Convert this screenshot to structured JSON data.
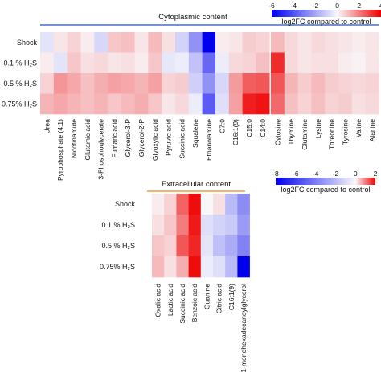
{
  "colors": {
    "negative": "#0000ee",
    "zero": "#f8f8fb",
    "positive": "#ee0000",
    "cyto_rule": "#4a6fc4",
    "extra_rule": "#f0a030"
  },
  "chart_data": [
    {
      "type": "heatmap",
      "title": "Cytoplasmic content",
      "colorbar": {
        "label": "log2FC compared to control",
        "ticks": [
          "-6",
          "-4",
          "-2",
          "0",
          "2",
          "4"
        ],
        "range": [
          -6,
          4
        ]
      },
      "rows": [
        "Shock",
        "0.1 % H₂S",
        "0.5 % H₂S",
        "0.75% H₂S"
      ],
      "groups": [
        {
          "columns": [
            "Urea",
            "Pyrophosphate (4:1)",
            "Nicotinamide",
            "Glutamic acid",
            "3-Phosphoglycerate",
            "Fumaric acid",
            "Glycerol-3-P",
            "Glycerol-2-P",
            "Glyoxylic acid",
            "Pyruvic acid",
            "Succinic acid",
            "Squalene",
            "Ethanolamine"
          ],
          "values": [
            [
              -0.5,
              0.3,
              0.6,
              0.2,
              -0.8,
              0.8,
              0.9,
              0.3,
              1.0,
              0.4,
              -0.9,
              -2.5,
              -6.0
            ],
            [
              0.2,
              -0.5,
              0.8,
              0.4,
              0.5,
              0.3,
              0.4,
              0.2,
              0.8,
              -0.4,
              -0.3,
              -1.3,
              -3.5
            ],
            [
              0.6,
              1.6,
              1.3,
              0.9,
              1.2,
              1.4,
              1.3,
              1.1,
              1.4,
              0.6,
              0.7,
              -1.0,
              -2.5
            ],
            [
              1.1,
              1.3,
              1.1,
              0.9,
              1.1,
              0.8,
              1.0,
              1.2,
              0.8,
              0.3,
              0.5,
              -0.3,
              -3.8
            ]
          ]
        },
        {
          "columns": [
            "C7:0",
            "C16:1(9)",
            "C15:0",
            "C14:0"
          ],
          "values": [
            [
              0.2,
              0.3,
              0.7,
              0.6
            ],
            [
              -0.3,
              0.5,
              0.6,
              0.9
            ],
            [
              -0.8,
              1.5,
              2.5,
              2.6
            ],
            [
              -0.6,
              1.4,
              3.5,
              3.7
            ]
          ]
        },
        {
          "columns": [
            "Cytosine",
            "Thymine",
            "Glutamine",
            "Lysine",
            "Threonine",
            "Tyrosine",
            "Valine",
            "Alanine"
          ],
          "values": [
            [
              1.0,
              0.5,
              0.3,
              0.5,
              0.4,
              0.3,
              0.2,
              0.3
            ],
            [
              3.3,
              0.5,
              0.3,
              0.4,
              0.4,
              0.2,
              0.1,
              0.3
            ],
            [
              2.6,
              1.1,
              0.7,
              1.0,
              0.7,
              0.6,
              0.5,
              0.6
            ],
            [
              2.3,
              0.9,
              0.6,
              0.9,
              0.6,
              0.7,
              0.4,
              0.5
            ]
          ]
        }
      ]
    },
    {
      "type": "heatmap",
      "title": "Extracellular content",
      "colorbar": {
        "label": "log2FC compared to control",
        "ticks": [
          "-8",
          "-6",
          "-4",
          "-2",
          "0",
          "2"
        ],
        "range": [
          -8,
          2
        ]
      },
      "rows": [
        "Shock",
        "0.1 % H₂S",
        "0.5 % H₂S",
        "0.75% H₂S"
      ],
      "groups": [
        {
          "columns": [
            "Oxalic acid",
            "Lactic acid",
            "Succinic acid",
            "Benzoic acid",
            "Guanine",
            "Citric acid",
            "C16:1(9)",
            "1-monohexadecanoylglycerol"
          ],
          "values": [
            [
              0.1,
              0.3,
              1.2,
              1.9,
              0.0,
              0.2,
              -2.0,
              -3.5
            ],
            [
              0.2,
              0.4,
              1.0,
              1.8,
              -0.8,
              -1.2,
              -1.5,
              -3.0
            ],
            [
              0.4,
              0.3,
              1.3,
              1.7,
              -0.6,
              -1.8,
              -2.5,
              -3.8
            ],
            [
              0.5,
              0.2,
              0.6,
              1.9,
              -0.4,
              -0.8,
              -2.0,
              -8.0
            ]
          ]
        }
      ]
    }
  ]
}
